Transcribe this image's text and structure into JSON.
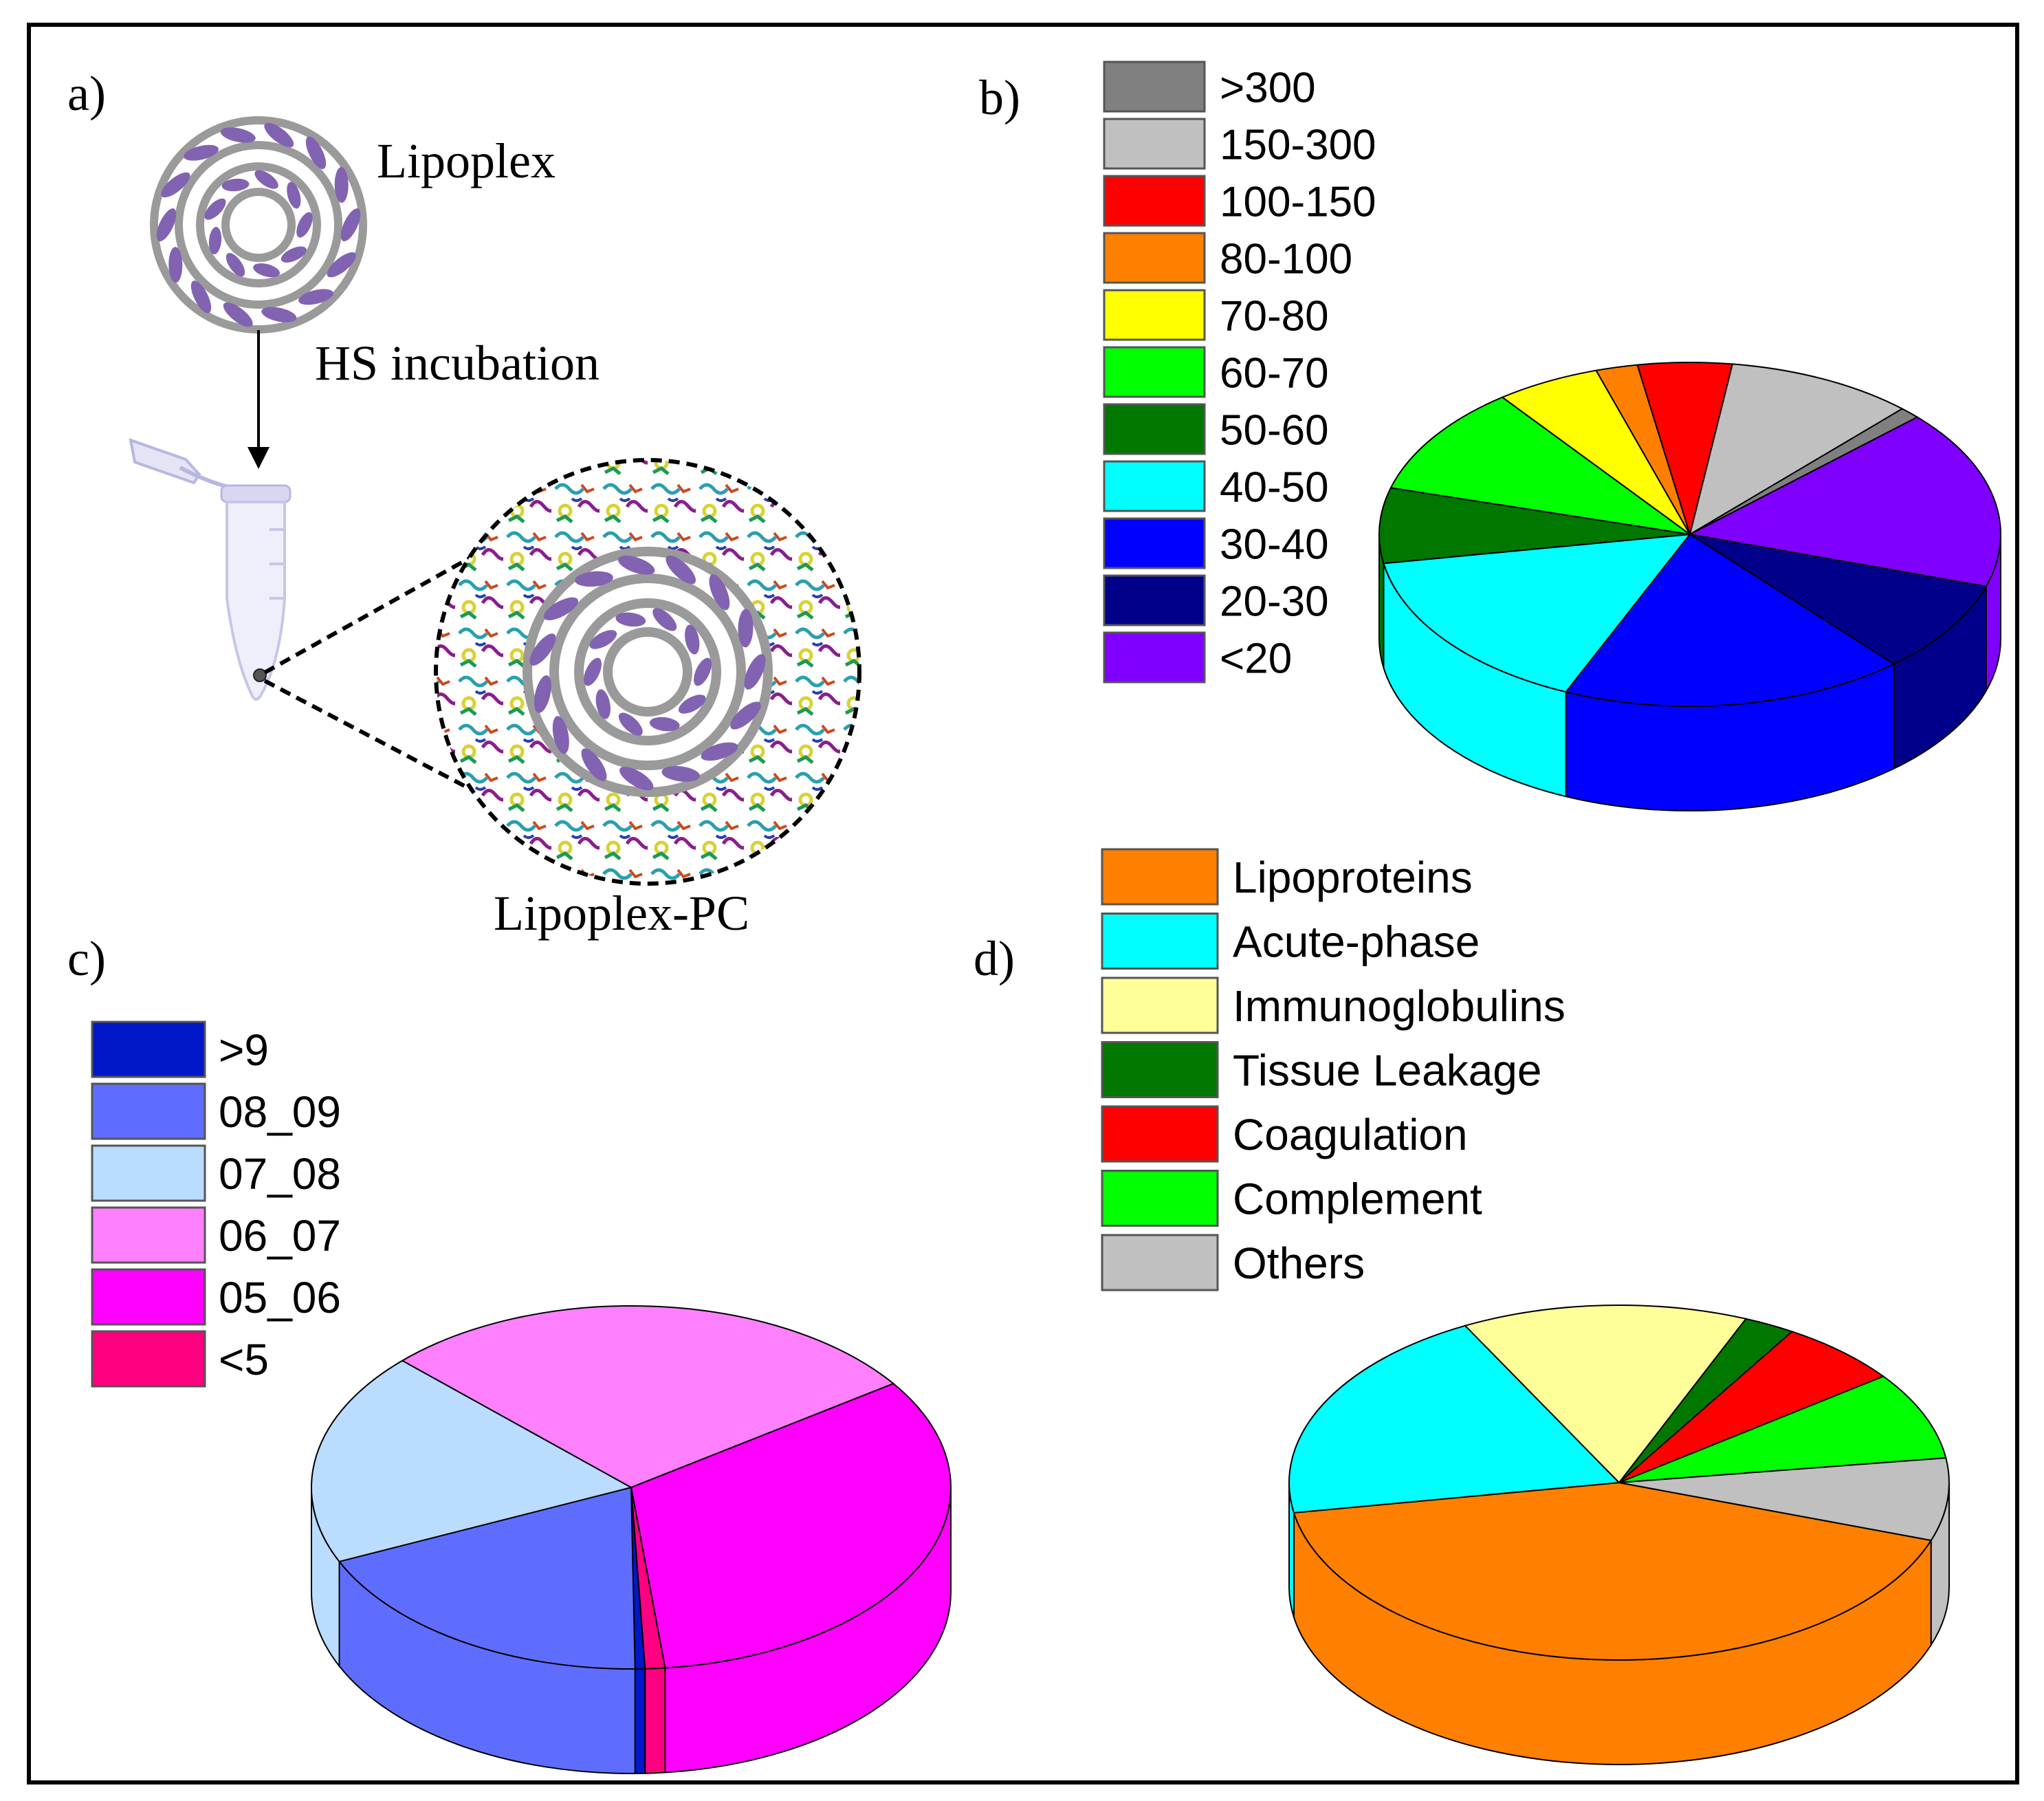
{
  "panel_a": {
    "label": "a)",
    "lipoplex_label": "Lipoplex",
    "incubation_label": "HS incubation",
    "corona_label": "Lipoplex-PC"
  },
  "chart_data": [
    {
      "panel": "b)",
      "type": "pie",
      "title": "",
      "legend_position": "top-left",
      "slices": [
        {
          "label": "<20",
          "value": 15.5,
          "color": "#8000ff"
        },
        {
          "label": "20-30",
          "value": 8.0,
          "color": "#00008b"
        },
        {
          "label": "30-40",
          "value": 16.5,
          "color": "#0000ff"
        },
        {
          "label": "40-50",
          "value": 14.5,
          "color": "#00ffff"
        },
        {
          "label": "50-60",
          "value": 6.5,
          "color": "#007800"
        },
        {
          "label": "60-70",
          "value": 9.5,
          "color": "#00ff00"
        },
        {
          "label": "70-80",
          "value": 5.0,
          "color": "#ffff00"
        },
        {
          "label": "80-100",
          "value": 2.0,
          "color": "#ff8000"
        },
        {
          "label": "100-150",
          "value": 4.5,
          "color": "#ff0000"
        },
        {
          "label": "150-300",
          "value": 9.0,
          "color": "#c0c0c0"
        },
        {
          "label": ">300",
          "value": 1.0,
          "color": "#808080"
        }
      ],
      "legend_order": [
        ">300",
        "150-300",
        "100-150",
        "80-100",
        "70-80",
        "60-70",
        "50-60",
        "40-50",
        "30-40",
        "20-30",
        "<20"
      ]
    },
    {
      "panel": "c)",
      "type": "pie",
      "title": "",
      "legend_position": "top-left",
      "slices": [
        {
          "label": ">9",
          "value": 0.5,
          "color": "#0018c8"
        },
        {
          "label": "08_09",
          "value": 18.5,
          "color": "#5f6dff"
        },
        {
          "label": "07_08",
          "value": 19.0,
          "color": "#b9dcff"
        },
        {
          "label": "06_07",
          "value": 28.0,
          "color": "#ff80ff"
        },
        {
          "label": "05_06",
          "value": 33.0,
          "color": "#ff00ff"
        },
        {
          "label": "<5",
          "value": 1.0,
          "color": "#ff0080"
        }
      ],
      "legend_order": [
        ">9",
        "08_09",
        "07_08",
        "06_07",
        "05_06",
        "<5"
      ]
    },
    {
      "panel": "d)",
      "type": "pie",
      "title": "",
      "legend_position": "top-left",
      "slices": [
        {
          "label": "Lipoproteins",
          "value": 42.0,
          "color": "#ff8000"
        },
        {
          "label": "Acute-phase",
          "value": 20.0,
          "color": "#00ffff"
        },
        {
          "label": "Immunoglobulins",
          "value": 14.0,
          "color": "#ffff99"
        },
        {
          "label": "Tissue Leakage",
          "value": 2.5,
          "color": "#007800"
        },
        {
          "label": "Coagulation",
          "value": 6.0,
          "color": "#ff0000"
        },
        {
          "label": "Complement",
          "value": 8.0,
          "color": "#00ff00"
        },
        {
          "label": "Others",
          "value": 7.5,
          "color": "#c0c0c0"
        }
      ],
      "legend_order": [
        "Lipoproteins",
        "Acute-phase",
        "Immunoglobulins",
        "Tissue Leakage",
        "Coagulation",
        "Complement",
        "Others"
      ]
    }
  ]
}
